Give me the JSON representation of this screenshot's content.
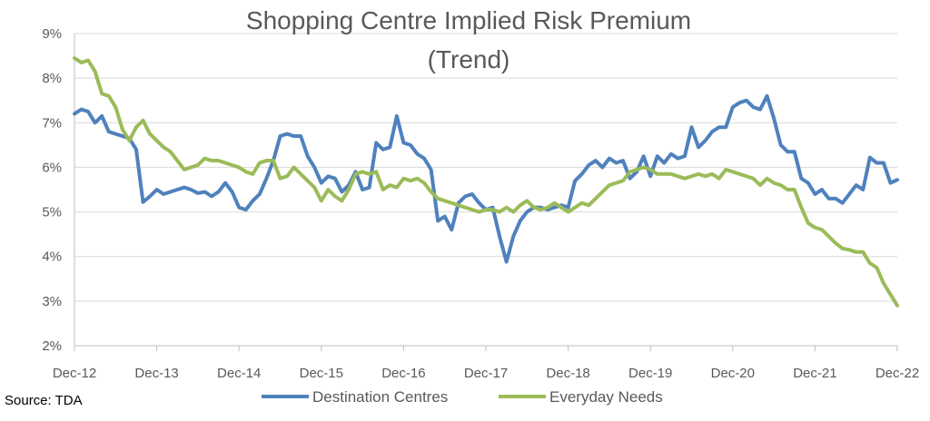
{
  "chart_data": {
    "type": "line",
    "title": "Shopping Centre Implied Risk Premium",
    "subtitle": "(Trend)",
    "xlabel": "",
    "ylabel": "",
    "source": "Source: TDA",
    "x_tick_labels": [
      "Dec-12",
      "Dec-13",
      "Dec-14",
      "Dec-15",
      "Dec-16",
      "Dec-17",
      "Dec-18",
      "Dec-19",
      "Dec-20",
      "Dec-21",
      "Dec-22"
    ],
    "y_tick_labels": [
      "2%",
      "3%",
      "4%",
      "5%",
      "6%",
      "7%",
      "8%",
      "9%"
    ],
    "ylim": [
      2,
      9
    ],
    "x_range": [
      "Dec-12",
      "Dec-22"
    ],
    "grid": "horizontal",
    "legend_position": "bottom",
    "series": [
      {
        "name": "Destination Centres",
        "color": "#4f81bd",
        "points": [
          [
            "Dec-12",
            7.2
          ],
          [
            "Jan-13",
            7.3
          ],
          [
            "Feb-13",
            7.25
          ],
          [
            "Mar-13",
            7.0
          ],
          [
            "Apr-13",
            7.15
          ],
          [
            "May-13",
            6.8
          ],
          [
            "Jun-13",
            6.75
          ],
          [
            "Jul-13",
            6.7
          ],
          [
            "Aug-13",
            6.65
          ],
          [
            "Sep-13",
            6.4
          ],
          [
            "Oct-13",
            5.22
          ],
          [
            "Nov-13",
            5.35
          ],
          [
            "Dec-13",
            5.5
          ],
          [
            "Jan-14",
            5.4
          ],
          [
            "Feb-14",
            5.45
          ],
          [
            "Mar-14",
            5.5
          ],
          [
            "Apr-14",
            5.55
          ],
          [
            "May-14",
            5.5
          ],
          [
            "Jun-14",
            5.42
          ],
          [
            "Jul-14",
            5.45
          ],
          [
            "Aug-14",
            5.35
          ],
          [
            "Sep-14",
            5.45
          ],
          [
            "Oct-14",
            5.65
          ],
          [
            "Nov-14",
            5.45
          ],
          [
            "Dec-14",
            5.1
          ],
          [
            "Jan-15",
            5.05
          ],
          [
            "Feb-15",
            5.25
          ],
          [
            "Mar-15",
            5.4
          ],
          [
            "Apr-15",
            5.75
          ],
          [
            "May-15",
            6.15
          ],
          [
            "Jun-15",
            6.7
          ],
          [
            "Jul-15",
            6.75
          ],
          [
            "Aug-15",
            6.7
          ],
          [
            "Sep-15",
            6.7
          ],
          [
            "Oct-15",
            6.25
          ],
          [
            "Nov-15",
            6.0
          ],
          [
            "Dec-15",
            5.65
          ],
          [
            "Jan-16",
            5.8
          ],
          [
            "Feb-16",
            5.75
          ],
          [
            "Mar-16",
            5.45
          ],
          [
            "Apr-16",
            5.6
          ],
          [
            "May-16",
            5.9
          ],
          [
            "Jun-16",
            5.5
          ],
          [
            "Jul-16",
            5.55
          ],
          [
            "Aug-16",
            6.55
          ],
          [
            "Sep-16",
            6.4
          ],
          [
            "Oct-16",
            6.45
          ],
          [
            "Nov-16",
            7.15
          ],
          [
            "Dec-16",
            6.55
          ],
          [
            "Jan-17",
            6.5
          ],
          [
            "Feb-17",
            6.3
          ],
          [
            "Mar-17",
            6.2
          ],
          [
            "Apr-17",
            5.95
          ],
          [
            "May-17",
            4.8
          ],
          [
            "Jun-17",
            4.9
          ],
          [
            "Jul-17",
            4.6
          ],
          [
            "Aug-17",
            5.2
          ],
          [
            "Sep-17",
            5.35
          ],
          [
            "Oct-17",
            5.4
          ],
          [
            "Nov-17",
            5.2
          ],
          [
            "Dec-17",
            5.05
          ],
          [
            "Jan-18",
            5.1
          ],
          [
            "Feb-18",
            4.45
          ],
          [
            "Mar-18",
            3.88
          ],
          [
            "Apr-18",
            4.45
          ],
          [
            "May-18",
            4.8
          ],
          [
            "Jun-18",
            5.0
          ],
          [
            "Jul-18",
            5.1
          ],
          [
            "Aug-18",
            5.1
          ],
          [
            "Sep-18",
            5.05
          ],
          [
            "Oct-18",
            5.1
          ],
          [
            "Nov-18",
            5.15
          ],
          [
            "Dec-18",
            5.1
          ],
          [
            "Jan-19",
            5.7
          ],
          [
            "Feb-19",
            5.85
          ],
          [
            "Mar-19",
            6.05
          ],
          [
            "Apr-19",
            6.15
          ],
          [
            "May-19",
            6.0
          ],
          [
            "Jun-19",
            6.2
          ],
          [
            "Jul-19",
            6.1
          ],
          [
            "Aug-19",
            6.15
          ],
          [
            "Sep-19",
            5.75
          ],
          [
            "Oct-19",
            5.9
          ],
          [
            "Nov-19",
            6.25
          ],
          [
            "Dec-19",
            5.8
          ],
          [
            "Jan-20",
            6.25
          ],
          [
            "Feb-20",
            6.1
          ],
          [
            "Mar-20",
            6.3
          ],
          [
            "Apr-20",
            6.2
          ],
          [
            "May-20",
            6.25
          ],
          [
            "Jun-20",
            6.9
          ],
          [
            "Jul-20",
            6.45
          ],
          [
            "Aug-20",
            6.6
          ],
          [
            "Sep-20",
            6.8
          ],
          [
            "Oct-20",
            6.9
          ],
          [
            "Nov-20",
            6.9
          ],
          [
            "Dec-20",
            7.35
          ],
          [
            "Jan-21",
            7.45
          ],
          [
            "Feb-21",
            7.5
          ],
          [
            "Mar-21",
            7.35
          ],
          [
            "Apr-21",
            7.3
          ],
          [
            "May-21",
            7.6
          ],
          [
            "Jun-21",
            7.1
          ],
          [
            "Jul-21",
            6.5
          ],
          [
            "Aug-21",
            6.35
          ],
          [
            "Sep-21",
            6.35
          ],
          [
            "Oct-21",
            5.75
          ],
          [
            "Nov-21",
            5.65
          ],
          [
            "Dec-21",
            5.4
          ],
          [
            "Jan-22",
            5.5
          ],
          [
            "Feb-22",
            5.3
          ],
          [
            "Mar-22",
            5.3
          ],
          [
            "Apr-22",
            5.2
          ],
          [
            "May-22",
            5.4
          ],
          [
            "Jun-22",
            5.6
          ],
          [
            "Jul-22",
            5.5
          ],
          [
            "Aug-22",
            6.22
          ],
          [
            "Sep-22",
            6.1
          ],
          [
            "Oct-22",
            6.1
          ],
          [
            "Nov-22",
            5.65
          ],
          [
            "Dec-22",
            5.72
          ]
        ]
      },
      {
        "name": "Everyday Needs",
        "color": "#9bbb59",
        "points": [
          [
            "Dec-12",
            8.45
          ],
          [
            "Jan-13",
            8.35
          ],
          [
            "Feb-13",
            8.4
          ],
          [
            "Mar-13",
            8.15
          ],
          [
            "Apr-13",
            7.65
          ],
          [
            "May-13",
            7.6
          ],
          [
            "Jun-13",
            7.35
          ],
          [
            "Jul-13",
            6.85
          ],
          [
            "Aug-13",
            6.6
          ],
          [
            "Sep-13",
            6.9
          ],
          [
            "Oct-13",
            7.05
          ],
          [
            "Nov-13",
            6.75
          ],
          [
            "Dec-13",
            6.6
          ],
          [
            "Jan-14",
            6.45
          ],
          [
            "Feb-14",
            6.35
          ],
          [
            "Mar-14",
            6.15
          ],
          [
            "Apr-14",
            5.95
          ],
          [
            "May-14",
            6.0
          ],
          [
            "Jun-14",
            6.05
          ],
          [
            "Jul-14",
            6.2
          ],
          [
            "Aug-14",
            6.15
          ],
          [
            "Sep-14",
            6.15
          ],
          [
            "Oct-14",
            6.1
          ],
          [
            "Nov-14",
            6.05
          ],
          [
            "Dec-14",
            6.0
          ],
          [
            "Jan-15",
            5.9
          ],
          [
            "Feb-15",
            5.85
          ],
          [
            "Mar-15",
            6.1
          ],
          [
            "Apr-15",
            6.15
          ],
          [
            "May-15",
            6.15
          ],
          [
            "Jun-15",
            5.75
          ],
          [
            "Jul-15",
            5.8
          ],
          [
            "Aug-15",
            6.0
          ],
          [
            "Sep-15",
            5.85
          ],
          [
            "Oct-15",
            5.7
          ],
          [
            "Nov-15",
            5.55
          ],
          [
            "Dec-15",
            5.25
          ],
          [
            "Jan-16",
            5.5
          ],
          [
            "Feb-16",
            5.35
          ],
          [
            "Mar-16",
            5.25
          ],
          [
            "Apr-16",
            5.5
          ],
          [
            "May-16",
            5.85
          ],
          [
            "Jun-16",
            5.9
          ],
          [
            "Jul-16",
            5.85
          ],
          [
            "Aug-16",
            5.9
          ],
          [
            "Sep-16",
            5.5
          ],
          [
            "Oct-16",
            5.6
          ],
          [
            "Nov-16",
            5.55
          ],
          [
            "Dec-16",
            5.75
          ],
          [
            "Jan-17",
            5.7
          ],
          [
            "Feb-17",
            5.75
          ],
          [
            "Mar-17",
            5.65
          ],
          [
            "Apr-17",
            5.45
          ],
          [
            "May-17",
            5.3
          ],
          [
            "Jun-17",
            5.25
          ],
          [
            "Jul-17",
            5.2
          ],
          [
            "Aug-17",
            5.15
          ],
          [
            "Sep-17",
            5.1
          ],
          [
            "Oct-17",
            5.05
          ],
          [
            "Nov-17",
            5.0
          ],
          [
            "Dec-17",
            5.05
          ],
          [
            "Jan-18",
            5.05
          ],
          [
            "Feb-18",
            5.0
          ],
          [
            "Mar-18",
            5.1
          ],
          [
            "Apr-18",
            5.0
          ],
          [
            "May-18",
            5.15
          ],
          [
            "Jun-18",
            5.25
          ],
          [
            "Jul-18",
            5.1
          ],
          [
            "Aug-18",
            5.05
          ],
          [
            "Sep-18",
            5.1
          ],
          [
            "Oct-18",
            5.2
          ],
          [
            "Nov-18",
            5.1
          ],
          [
            "Dec-18",
            5.0
          ],
          [
            "Jan-19",
            5.1
          ],
          [
            "Feb-19",
            5.2
          ],
          [
            "Mar-19",
            5.15
          ],
          [
            "Apr-19",
            5.3
          ],
          [
            "May-19",
            5.45
          ],
          [
            "Jun-19",
            5.6
          ],
          [
            "Jul-19",
            5.65
          ],
          [
            "Aug-19",
            5.7
          ],
          [
            "Sep-19",
            5.9
          ],
          [
            "Oct-19",
            5.95
          ],
          [
            "Nov-19",
            6.0
          ],
          [
            "Dec-19",
            5.95
          ],
          [
            "Jan-20",
            5.85
          ],
          [
            "Feb-20",
            5.85
          ],
          [
            "Mar-20",
            5.85
          ],
          [
            "Apr-20",
            5.8
          ],
          [
            "May-20",
            5.75
          ],
          [
            "Jun-20",
            5.8
          ],
          [
            "Jul-20",
            5.85
          ],
          [
            "Aug-20",
            5.8
          ],
          [
            "Sep-20",
            5.85
          ],
          [
            "Oct-20",
            5.75
          ],
          [
            "Nov-20",
            5.95
          ],
          [
            "Dec-20",
            5.9
          ],
          [
            "Jan-21",
            5.85
          ],
          [
            "Feb-21",
            5.8
          ],
          [
            "Mar-21",
            5.75
          ],
          [
            "Apr-21",
            5.6
          ],
          [
            "May-21",
            5.75
          ],
          [
            "Jun-21",
            5.65
          ],
          [
            "Jul-21",
            5.6
          ],
          [
            "Aug-21",
            5.5
          ],
          [
            "Sep-21",
            5.5
          ],
          [
            "Oct-21",
            5.1
          ],
          [
            "Nov-21",
            4.75
          ],
          [
            "Dec-21",
            4.65
          ],
          [
            "Jan-22",
            4.6
          ],
          [
            "Feb-22",
            4.45
          ],
          [
            "Mar-22",
            4.3
          ],
          [
            "Apr-22",
            4.18
          ],
          [
            "May-22",
            4.15
          ],
          [
            "Jun-22",
            4.1
          ],
          [
            "Jul-22",
            4.1
          ],
          [
            "Aug-22",
            3.85
          ],
          [
            "Sep-22",
            3.75
          ],
          [
            "Oct-22",
            3.4
          ],
          [
            "Nov-22",
            3.15
          ],
          [
            "Dec-22",
            2.9
          ]
        ]
      }
    ]
  }
}
